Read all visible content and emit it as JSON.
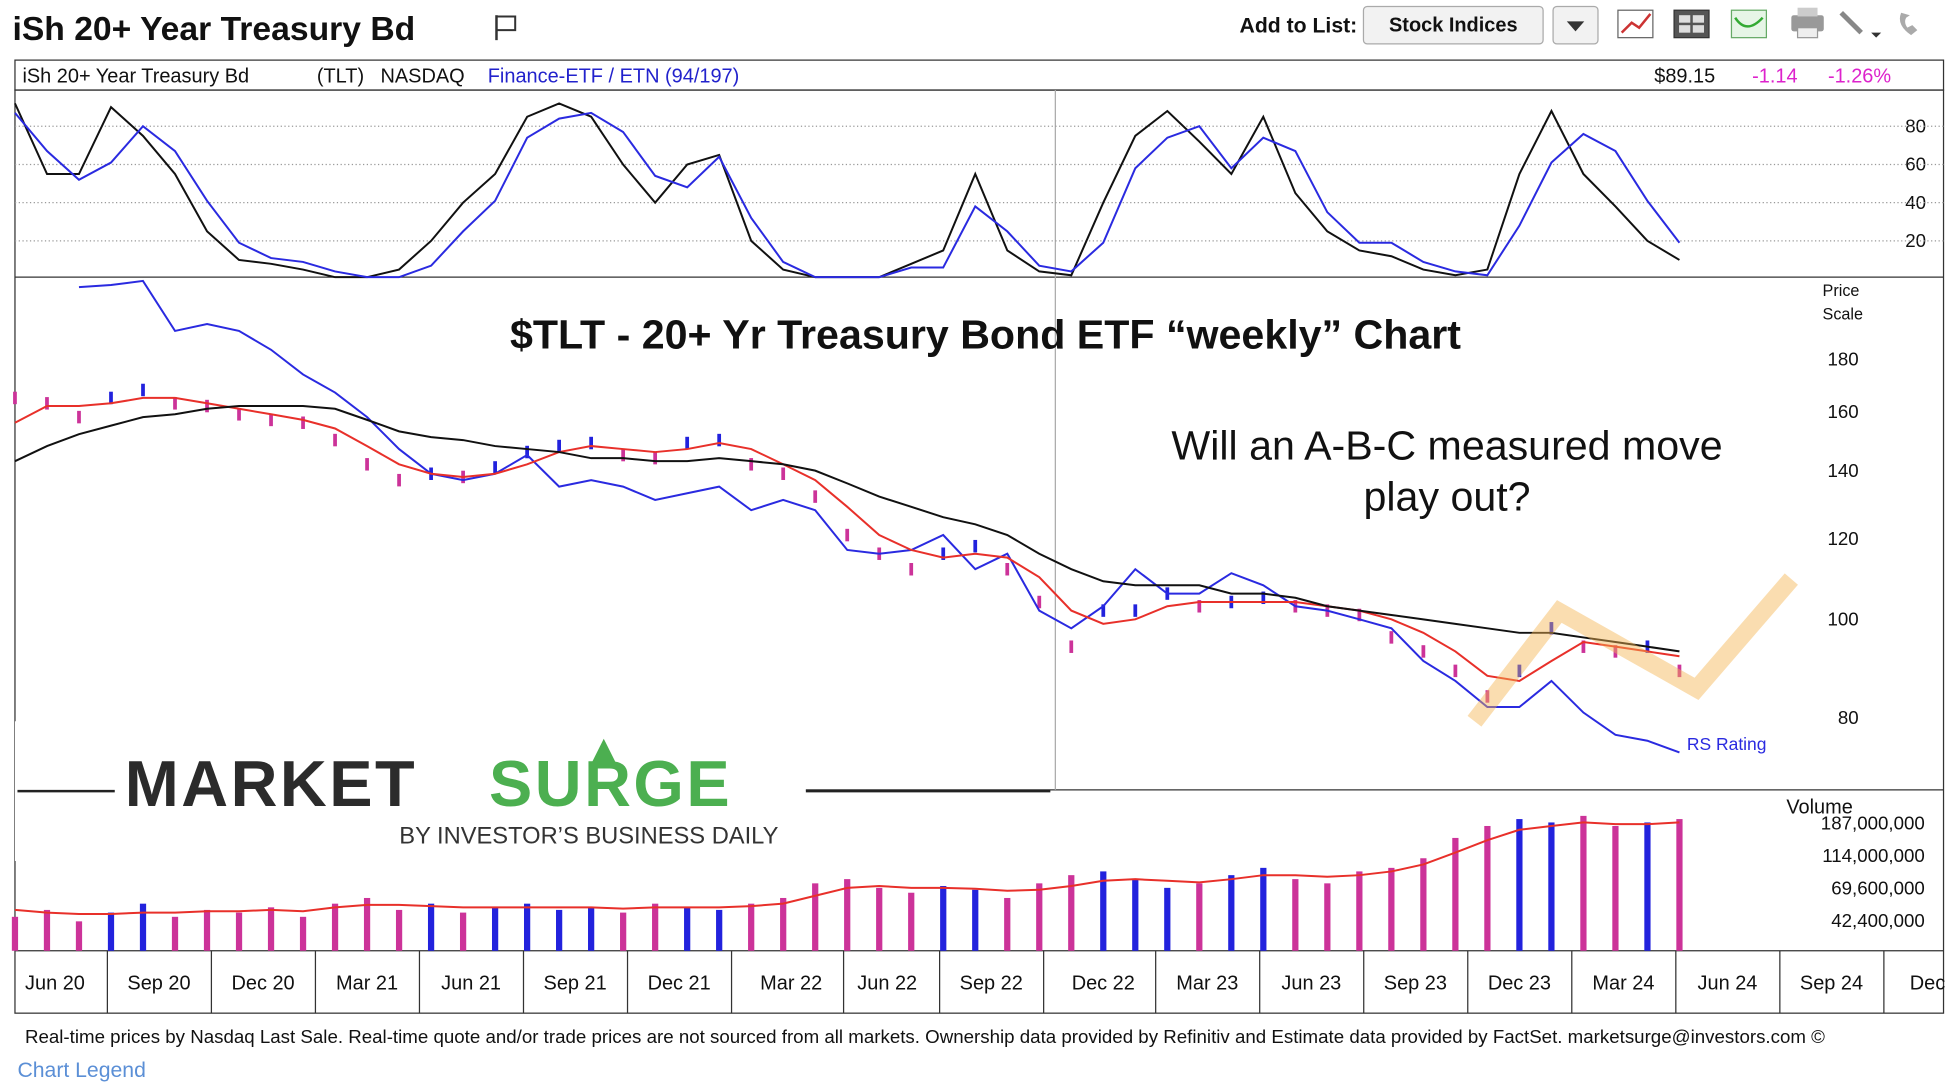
{
  "header": {
    "title": "iSh 20+ Year Treasury Bd",
    "add_to_list": "Add to List:",
    "list_button": "Stock Indices"
  },
  "quote": {
    "name": "iSh 20+ Year Treasury Bd",
    "symbol": "(TLT)",
    "exchange": "NASDAQ",
    "industry": "Finance-ETF / ETN (94/197)",
    "price": "$89.15",
    "change": "-1.14",
    "change_pct": "-1.26%"
  },
  "chart_data": [
    {
      "type": "line",
      "x": [
        0,
        4,
        8,
        12,
        16,
        20,
        24,
        28,
        32,
        36,
        40,
        44,
        48,
        52,
        56,
        60,
        64,
        68,
        72,
        76,
        80,
        84,
        88,
        92,
        96,
        100,
        104,
        108,
        112,
        116,
        120,
        124,
        128,
        132,
        136,
        140,
        144,
        148,
        152,
        156,
        160,
        164,
        168,
        172,
        176,
        180,
        184,
        188,
        192,
        196,
        200,
        204,
        208
      ],
      "xlim": [
        0,
        241
      ],
      "ylim": [
        1,
        97
      ],
      "yticks": [
        20,
        40,
        60,
        80
      ],
      "grid": true,
      "series": [
        {
          "color": "#111111",
          "values": [
            92,
            55,
            55,
            90,
            75,
            55,
            25,
            10,
            8,
            5,
            1,
            1,
            5,
            20,
            40,
            55,
            85,
            92,
            85,
            60,
            40,
            60,
            65,
            20,
            5,
            1,
            1,
            1,
            8,
            15,
            55,
            15,
            4,
            2,
            40,
            75,
            88,
            72,
            55,
            85,
            45,
            25,
            15,
            12,
            5,
            2,
            5,
            55,
            88,
            55,
            38,
            20,
            10
          ]
        },
        {
          "color": "#2a2ae0",
          "values": [
            87,
            67,
            52,
            61,
            80,
            67,
            41,
            19,
            11,
            9,
            4,
            1,
            1,
            7,
            25,
            41,
            74,
            84,
            87,
            77,
            54,
            48,
            64,
            32,
            9,
            1,
            1,
            1,
            6,
            6,
            38,
            25,
            7,
            4,
            19,
            58,
            74,
            80,
            58,
            74,
            67,
            35,
            19,
            19,
            9,
            4,
            2,
            28,
            61,
            76,
            67,
            41,
            19
          ]
        }
      ]
    },
    {
      "type": "line",
      "log": true,
      "title": "$TLT - 20+ Yr Treasury Bond ETF “weekly” Chart",
      "annotation": [
        "Will an A-B-C measured move",
        "play out?"
      ],
      "y_label": [
        "Price",
        "Scale"
      ],
      "x": [
        0,
        4,
        8,
        12,
        16,
        20,
        24,
        28,
        32,
        36,
        40,
        44,
        48,
        52,
        56,
        60,
        64,
        68,
        72,
        76,
        80,
        84,
        88,
        92,
        96,
        100,
        104,
        108,
        112,
        116,
        120,
        124,
        128,
        132,
        136,
        140,
        144,
        148,
        152,
        156,
        160,
        164,
        168,
        172,
        176,
        180,
        184,
        188,
        192,
        196,
        200,
        204,
        208
      ],
      "xlim": [
        0,
        241
      ],
      "ylim": [
        68,
        215
      ],
      "yticks": [
        80,
        100,
        120,
        140,
        160,
        180
      ],
      "up_color": "#2222dd",
      "down_color": "#cc3399",
      "series": [
        {
          "kind": "ticks",
          "values": [
            165,
            163,
            158,
            165,
            168,
            163,
            162,
            159,
            157,
            156,
            150,
            142,
            137,
            139,
            138,
            141,
            146,
            148,
            149,
            145,
            144,
            149,
            150,
            142,
            139,
            132,
            121,
            116,
            112,
            116,
            118,
            112,
            104,
            94,
            102,
            102,
            106,
            103,
            104,
            105,
            103,
            102,
            101,
            96,
            93,
            89,
            84,
            89,
            98,
            94,
            93,
            94,
            89
          ]
        },
        {
          "name": "RS Rating",
          "kind": "line",
          "color": "#2a2ae0",
          "values": [
            null,
            null,
            212,
            213,
            215,
            192,
            195,
            192,
            184,
            174,
            167,
            158,
            147,
            139,
            137,
            139,
            145,
            135,
            137,
            135,
            131,
            133,
            135,
            128,
            131,
            128,
            117,
            116,
            117,
            121,
            112,
            116,
            102,
            98,
            103,
            112,
            106,
            106,
            111,
            108,
            103,
            102,
            100,
            98,
            91,
            87,
            82,
            82,
            87,
            81,
            77,
            76,
            74
          ]
        },
        {
          "kind": "line",
          "color": "#e8302a",
          "values": [
            156,
            162,
            162,
            163,
            165,
            165,
            163,
            161,
            159,
            157,
            154,
            148,
            142,
            139,
            138,
            139,
            142,
            146,
            148,
            147,
            146,
            147,
            149,
            147,
            142,
            137,
            129,
            121,
            117,
            115,
            116,
            115,
            110,
            102,
            99,
            100,
            103,
            104,
            104,
            104,
            104,
            103,
            102,
            100,
            97,
            93,
            88,
            87,
            91,
            95,
            94,
            93,
            92
          ]
        },
        {
          "kind": "line",
          "color": "#111111",
          "values": [
            143,
            148,
            152,
            155,
            158,
            159,
            161,
            162,
            162,
            162,
            161,
            157,
            153,
            151,
            150,
            148,
            147,
            146,
            144,
            144,
            143,
            143,
            144,
            143,
            142,
            140,
            136,
            132,
            129,
            126,
            124,
            121,
            116,
            112,
            109,
            108,
            108,
            108,
            106,
            106,
            105,
            103,
            102,
            101,
            100,
            99,
            98,
            97,
            97,
            96,
            95,
            94,
            93
          ]
        }
      ]
    },
    {
      "type": "bar",
      "log": true,
      "y_label": "Volume",
      "x": [
        0,
        4,
        8,
        12,
        16,
        20,
        24,
        28,
        32,
        36,
        40,
        44,
        48,
        52,
        56,
        60,
        64,
        68,
        72,
        76,
        80,
        84,
        88,
        92,
        96,
        100,
        104,
        108,
        112,
        116,
        120,
        124,
        128,
        132,
        136,
        140,
        144,
        148,
        152,
        156,
        160,
        164,
        168,
        172,
        176,
        180,
        184,
        188,
        192,
        196,
        200,
        204,
        208
      ],
      "xlim": [
        0,
        241
      ],
      "ylim": [
        26800000,
        295000000
      ],
      "yticks": [
        {
          "value": 42400000,
          "label": "42,400,000"
        },
        {
          "value": 69600000,
          "label": "69,600,000"
        },
        {
          "value": 114000000,
          "label": "114,000,000"
        },
        {
          "value": 187000000,
          "label": "187,000,000"
        }
      ],
      "xticks": [
        {
          "value": 5,
          "label": "Jun 20"
        },
        {
          "value": 18,
          "label": "Sep 20"
        },
        {
          "value": 31,
          "label": "Dec 20"
        },
        {
          "value": 44,
          "label": "Mar 21"
        },
        {
          "value": 57,
          "label": "Jun 21"
        },
        {
          "value": 70,
          "label": "Sep 21"
        },
        {
          "value": 83,
          "label": "Dec 21"
        },
        {
          "value": 97,
          "label": "Mar 22"
        },
        {
          "value": 109,
          "label": "Jun 22"
        },
        {
          "value": 122,
          "label": "Sep 22"
        },
        {
          "value": 136,
          "label": "Dec 22"
        },
        {
          "value": 149,
          "label": "Mar 23"
        },
        {
          "value": 162,
          "label": "Jun 23"
        },
        {
          "value": 175,
          "label": "Sep 23"
        },
        {
          "value": 188,
          "label": "Dec 23"
        },
        {
          "value": 201,
          "label": "Mar 24"
        },
        {
          "value": 214,
          "label": "Jun 24"
        },
        {
          "value": 227,
          "label": "Sep 24"
        },
        {
          "value": 239,
          "label": "Dec"
        }
      ],
      "up_color": "#2222dd",
      "down_color": "#cc3399",
      "series": [
        {
          "kind": "bar",
          "values": [
            45000000,
            50000000,
            42000000,
            48000000,
            55000000,
            45000000,
            50000000,
            48000000,
            52000000,
            45000000,
            55000000,
            60000000,
            50000000,
            55000000,
            48000000,
            52000000,
            55000000,
            50000000,
            52000000,
            48000000,
            55000000,
            52000000,
            50000000,
            55000000,
            60000000,
            75000000,
            80000000,
            70000000,
            65000000,
            72000000,
            68000000,
            60000000,
            75000000,
            85000000,
            90000000,
            80000000,
            70000000,
            75000000,
            85000000,
            95000000,
            80000000,
            75000000,
            90000000,
            95000000,
            110000000,
            150000000,
            180000000,
            200000000,
            190000000,
            210000000,
            180000000,
            190000000,
            200000000
          ]
        },
        {
          "kind": "line",
          "color": "#e8302a",
          "values": [
            50000000,
            48000000,
            47000000,
            47000000,
            48000000,
            48000000,
            49000000,
            49000000,
            50000000,
            49000000,
            52000000,
            54000000,
            54000000,
            53000000,
            52000000,
            52000000,
            52000000,
            52000000,
            52000000,
            51000000,
            52000000,
            52000000,
            52000000,
            53000000,
            55000000,
            62000000,
            70000000,
            72000000,
            70000000,
            70000000,
            69000000,
            67000000,
            68000000,
            72000000,
            78000000,
            80000000,
            78000000,
            76000000,
            80000000,
            85000000,
            85000000,
            83000000,
            85000000,
            90000000,
            100000000,
            120000000,
            145000000,
            170000000,
            180000000,
            190000000,
            185000000,
            185000000,
            190000000
          ]
        }
      ]
    }
  ],
  "logo": {
    "market": "MARKET",
    "surge": "SURGE",
    "byline": "BY INVESTOR’S BUSINESS DAILY"
  },
  "footer": {
    "disclaimer": "Real-time prices by Nasdaq Last Sale. Real-time quote and/or trade prices are not sourced from all markets. Ownership data provided by Refinitiv and Estimate data provided by FactSet. marketsurge@investors.com ©",
    "legend_link": "Chart Legend"
  }
}
